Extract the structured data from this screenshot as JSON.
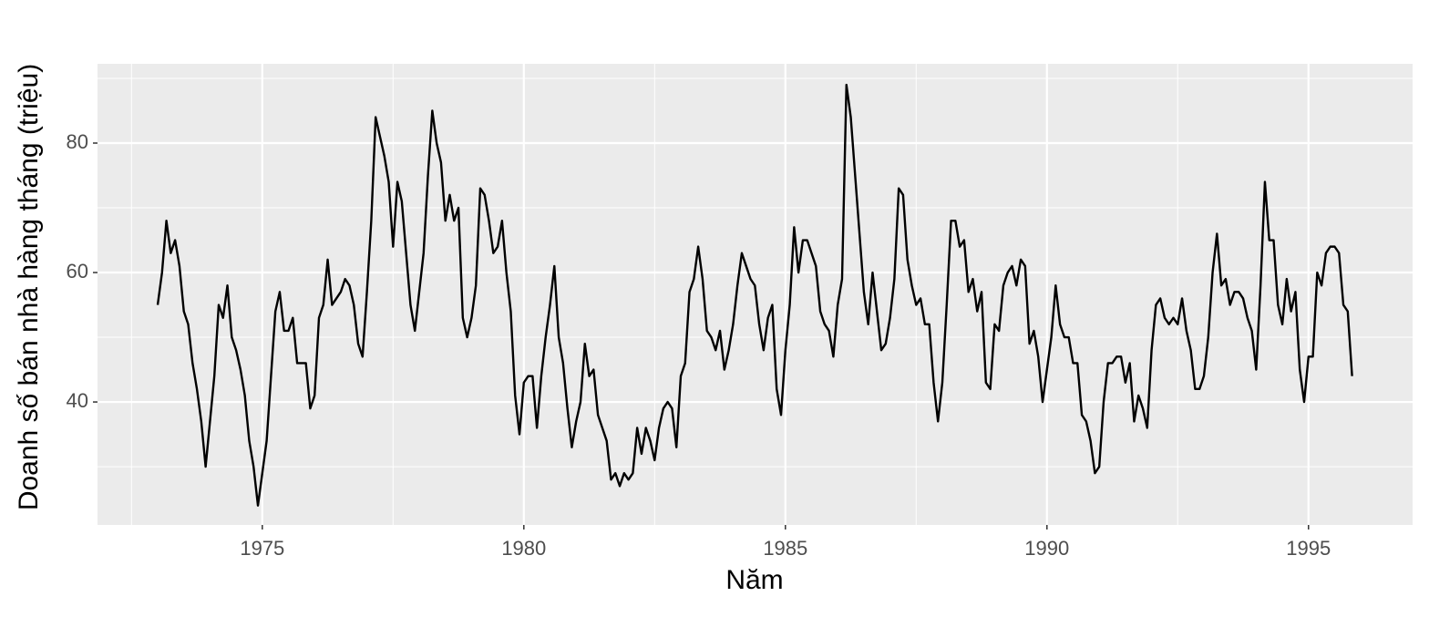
{
  "chart_data": {
    "type": "line",
    "x_label": "Năm",
    "y_label": "Doanh số bán nhà hàng tháng (triệu)",
    "x": [
      1973,
      1973.0833,
      1973.1667,
      1973.25,
      1973.3333,
      1973.4167,
      1973.5,
      1973.5833,
      1973.6667,
      1973.75,
      1973.8333,
      1973.9167,
      1974,
      1974.0833,
      1974.1667,
      1974.25,
      1974.3333,
      1974.4167,
      1974.5,
      1974.5833,
      1974.6667,
      1974.75,
      1974.8333,
      1974.9167,
      1975,
      1975.0833,
      1975.1667,
      1975.25,
      1975.3333,
      1975.4167,
      1975.5,
      1975.5833,
      1975.6667,
      1975.75,
      1975.8333,
      1975.9167,
      1976,
      1976.0833,
      1976.1667,
      1976.25,
      1976.3333,
      1976.4167,
      1976.5,
      1976.5833,
      1976.6667,
      1976.75,
      1976.8333,
      1976.9167,
      1977,
      1977.0833,
      1977.1667,
      1977.25,
      1977.3333,
      1977.4167,
      1977.5,
      1977.5833,
      1977.6667,
      1977.75,
      1977.8333,
      1977.9167,
      1978,
      1978.0833,
      1978.1667,
      1978.25,
      1978.3333,
      1978.4167,
      1978.5,
      1978.5833,
      1978.6667,
      1978.75,
      1978.8333,
      1978.9167,
      1979,
      1979.0833,
      1979.1667,
      1979.25,
      1979.3333,
      1979.4167,
      1979.5,
      1979.5833,
      1979.6667,
      1979.75,
      1979.8333,
      1979.9167,
      1980,
      1980.0833,
      1980.1667,
      1980.25,
      1980.3333,
      1980.4167,
      1980.5,
      1980.5833,
      1980.6667,
      1980.75,
      1980.8333,
      1980.9167,
      1981,
      1981.0833,
      1981.1667,
      1981.25,
      1981.3333,
      1981.4167,
      1981.5,
      1981.5833,
      1981.6667,
      1981.75,
      1981.8333,
      1981.9167,
      1982,
      1982.0833,
      1982.1667,
      1982.25,
      1982.3333,
      1982.4167,
      1982.5,
      1982.5833,
      1982.6667,
      1982.75,
      1982.8333,
      1982.9167,
      1983,
      1983.0833,
      1983.1667,
      1983.25,
      1983.3333,
      1983.4167,
      1983.5,
      1983.5833,
      1983.6667,
      1983.75,
      1983.8333,
      1983.9167,
      1984,
      1984.0833,
      1984.1667,
      1984.25,
      1984.3333,
      1984.4167,
      1984.5,
      1984.5833,
      1984.6667,
      1984.75,
      1984.8333,
      1984.9167,
      1985,
      1985.0833,
      1985.1667,
      1985.25,
      1985.3333,
      1985.4167,
      1985.5,
      1985.5833,
      1985.6667,
      1985.75,
      1985.8333,
      1985.9167,
      1986,
      1986.0833,
      1986.1667,
      1986.25,
      1986.3333,
      1986.4167,
      1986.5,
      1986.5833,
      1986.6667,
      1986.75,
      1986.8333,
      1986.9167,
      1987,
      1987.0833,
      1987.1667,
      1987.25,
      1987.3333,
      1987.4167,
      1987.5,
      1987.5833,
      1987.6667,
      1987.75,
      1987.8333,
      1987.9167,
      1988,
      1988.0833,
      1988.1667,
      1988.25,
      1988.3333,
      1988.4167,
      1988.5,
      1988.5833,
      1988.6667,
      1988.75,
      1988.8333,
      1988.9167,
      1989,
      1989.0833,
      1989.1667,
      1989.25,
      1989.3333,
      1989.4167,
      1989.5,
      1989.5833,
      1989.6667,
      1989.75,
      1989.8333,
      1989.9167,
      1990,
      1990.0833,
      1990.1667,
      1990.25,
      1990.3333,
      1990.4167,
      1990.5,
      1990.5833,
      1990.6667,
      1990.75,
      1990.8333,
      1990.9167,
      1991,
      1991.0833,
      1991.1667,
      1991.25,
      1991.3333,
      1991.4167,
      1991.5,
      1991.5833,
      1991.6667,
      1991.75,
      1991.8333,
      1991.9167,
      1992,
      1992.0833,
      1992.1667,
      1992.25,
      1992.3333,
      1992.4167,
      1992.5,
      1992.5833,
      1992.6667,
      1992.75,
      1992.8333,
      1992.9167,
      1993,
      1993.0833,
      1993.1667,
      1993.25,
      1993.3333,
      1993.4167,
      1993.5,
      1993.5833,
      1993.6667,
      1993.75,
      1993.8333,
      1993.9167,
      1994,
      1994.0833,
      1994.1667,
      1994.25,
      1994.3333,
      1994.4167,
      1994.5,
      1994.5833,
      1994.6667,
      1994.75,
      1994.8333,
      1994.9167,
      1995,
      1995.0833,
      1995.1667,
      1995.25,
      1995.3333,
      1995.4167,
      1995.5,
      1995.5833,
      1995.6667,
      1995.75,
      1995.8333
    ],
    "values": [
      55,
      60,
      68,
      63,
      65,
      61,
      54,
      52,
      46,
      42,
      37,
      30,
      37,
      44,
      55,
      53,
      58,
      50,
      48,
      45,
      41,
      34,
      30,
      24,
      29,
      34,
      44,
      54,
      57,
      51,
      51,
      53,
      46,
      46,
      46,
      39,
      41,
      53,
      55,
      62,
      55,
      56,
      57,
      59,
      58,
      55,
      49,
      47,
      57,
      68,
      84,
      81,
      78,
      74,
      64,
      74,
      71,
      63,
      55,
      51,
      57,
      63,
      75,
      85,
      80,
      77,
      68,
      72,
      68,
      70,
      53,
      50,
      53,
      58,
      73,
      72,
      68,
      63,
      64,
      68,
      60,
      54,
      41,
      35,
      43,
      44,
      44,
      36,
      44,
      50,
      55,
      61,
      50,
      46,
      39,
      33,
      37,
      40,
      49,
      44,
      45,
      38,
      36,
      34,
      28,
      29,
      27,
      29,
      28,
      29,
      36,
      32,
      36,
      34,
      31,
      36,
      39,
      40,
      39,
      33,
      44,
      46,
      57,
      59,
      64,
      59,
      51,
      50,
      48,
      51,
      45,
      48,
      52,
      58,
      63,
      61,
      59,
      58,
      52,
      48,
      53,
      55,
      42,
      38,
      48,
      55,
      67,
      60,
      65,
      65,
      63,
      61,
      54,
      52,
      51,
      47,
      55,
      59,
      89,
      84,
      75,
      66,
      57,
      52,
      60,
      54,
      48,
      49,
      53,
      59,
      73,
      72,
      62,
      58,
      55,
      56,
      52,
      52,
      43,
      37,
      43,
      55,
      68,
      68,
      64,
      65,
      57,
      59,
      54,
      57,
      43,
      42,
      52,
      51,
      58,
      60,
      61,
      58,
      62,
      61,
      49,
      51,
      47,
      40,
      45,
      50,
      58,
      52,
      50,
      50,
      46,
      46,
      38,
      37,
      34,
      29,
      30,
      40,
      46,
      46,
      47,
      47,
      43,
      46,
      37,
      41,
      39,
      36,
      48,
      55,
      56,
      53,
      52,
      53,
      52,
      56,
      51,
      48,
      42,
      42,
      44,
      50,
      60,
      66,
      58,
      59,
      55,
      57,
      57,
      56,
      53,
      51,
      45,
      58,
      74,
      65,
      65,
      55,
      52,
      59,
      54,
      57,
      45,
      40,
      47,
      47,
      60,
      58,
      63,
      64,
      64,
      63,
      55,
      54,
      44
    ],
    "color": "#000000",
    "xlim": [
      1971.85,
      1996.99
    ],
    "xticks": [
      1975,
      1980,
      1985,
      1990,
      1995
    ],
    "xminor_ticks": [
      1972.5,
      1977.5,
      1982.5,
      1987.5,
      1992.5
    ],
    "ylim": [
      21,
      92.25
    ],
    "yticks": [
      40,
      60,
      80
    ],
    "yminor_ticks": [
      30,
      50,
      70,
      90
    ],
    "grid": true
  }
}
